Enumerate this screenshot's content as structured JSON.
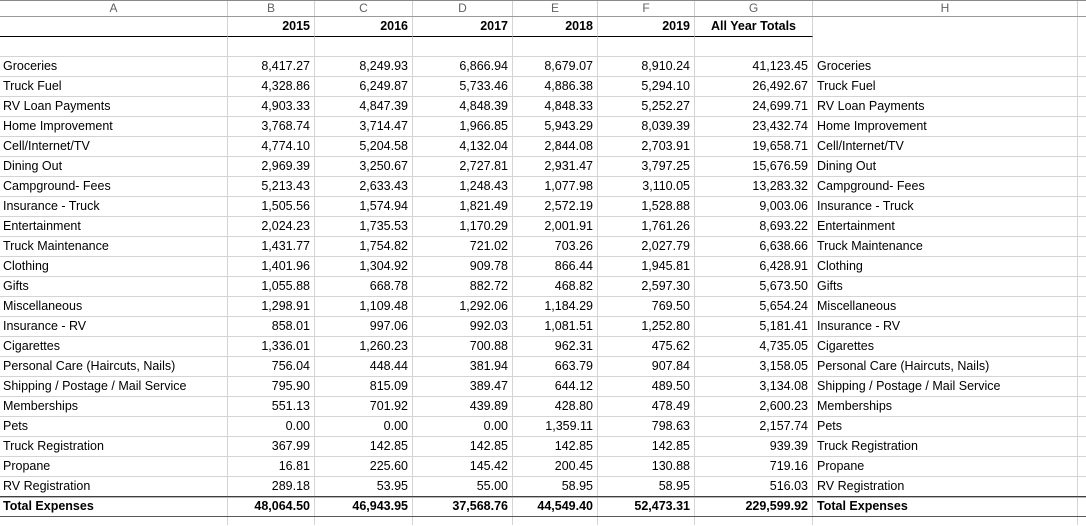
{
  "columns": [
    "A",
    "B",
    "C",
    "D",
    "E",
    "F",
    "G",
    "H"
  ],
  "year_headers": [
    "2015",
    "2016",
    "2017",
    "2018",
    "2019"
  ],
  "all_year_totals_label": "All Year Totals",
  "rows": [
    {
      "label": "Groceries",
      "values": [
        "8,417.27",
        "8,249.93",
        "6,866.94",
        "8,679.07",
        "8,910.24"
      ],
      "total": "41,123.45"
    },
    {
      "label": "Truck Fuel",
      "values": [
        "4,328.86",
        "6,249.87",
        "5,733.46",
        "4,886.38",
        "5,294.10"
      ],
      "total": "26,492.67"
    },
    {
      "label": "RV Loan Payments",
      "values": [
        "4,903.33",
        "4,847.39",
        "4,848.39",
        "4,848.33",
        "5,252.27"
      ],
      "total": "24,699.71"
    },
    {
      "label": "Home Improvement",
      "values": [
        "3,768.74",
        "3,714.47",
        "1,966.85",
        "5,943.29",
        "8,039.39"
      ],
      "total": "23,432.74"
    },
    {
      "label": "Cell/Internet/TV",
      "values": [
        "4,774.10",
        "5,204.58",
        "4,132.04",
        "2,844.08",
        "2,703.91"
      ],
      "total": "19,658.71"
    },
    {
      "label": "Dining Out",
      "values": [
        "2,969.39",
        "3,250.67",
        "2,727.81",
        "2,931.47",
        "3,797.25"
      ],
      "total": "15,676.59"
    },
    {
      "label": "Campground- Fees",
      "values": [
        "5,213.43",
        "2,633.43",
        "1,248.43",
        "1,077.98",
        "3,110.05"
      ],
      "total": "13,283.32"
    },
    {
      "label": "Insurance - Truck",
      "values": [
        "1,505.56",
        "1,574.94",
        "1,821.49",
        "2,572.19",
        "1,528.88"
      ],
      "total": "9,003.06"
    },
    {
      "label": "Entertainment",
      "values": [
        "2,024.23",
        "1,735.53",
        "1,170.29",
        "2,001.91",
        "1,761.26"
      ],
      "total": "8,693.22"
    },
    {
      "label": "Truck Maintenance",
      "values": [
        "1,431.77",
        "1,754.82",
        "721.02",
        "703.26",
        "2,027.79"
      ],
      "total": "6,638.66"
    },
    {
      "label": "Clothing",
      "values": [
        "1,401.96",
        "1,304.92",
        "909.78",
        "866.44",
        "1,945.81"
      ],
      "total": "6,428.91"
    },
    {
      "label": "Gifts",
      "values": [
        "1,055.88",
        "668.78",
        "882.72",
        "468.82",
        "2,597.30"
      ],
      "total": "5,673.50"
    },
    {
      "label": "Miscellaneous",
      "values": [
        "1,298.91",
        "1,109.48",
        "1,292.06",
        "1,184.29",
        "769.50"
      ],
      "total": "5,654.24"
    },
    {
      "label": "Insurance - RV",
      "values": [
        "858.01",
        "997.06",
        "992.03",
        "1,081.51",
        "1,252.80"
      ],
      "total": "5,181.41"
    },
    {
      "label": "Cigarettes",
      "values": [
        "1,336.01",
        "1,260.23",
        "700.88",
        "962.31",
        "475.62"
      ],
      "total": "4,735.05"
    },
    {
      "label": "Personal Care (Haircuts, Nails)",
      "values": [
        "756.04",
        "448.44",
        "381.94",
        "663.79",
        "907.84"
      ],
      "total": "3,158.05"
    },
    {
      "label": "Shipping / Postage / Mail Service",
      "values": [
        "795.90",
        "815.09",
        "389.47",
        "644.12",
        "489.50"
      ],
      "total": "3,134.08"
    },
    {
      "label": "Memberships",
      "values": [
        "551.13",
        "701.92",
        "439.89",
        "428.80",
        "478.49"
      ],
      "total": "2,600.23"
    },
    {
      "label": "Pets",
      "values": [
        "0.00",
        "0.00",
        "0.00",
        "1,359.11",
        "798.63"
      ],
      "total": "2,157.74"
    },
    {
      "label": "Truck Registration",
      "values": [
        "367.99",
        "142.85",
        "142.85",
        "142.85",
        "142.85"
      ],
      "total": "939.39"
    },
    {
      "label": "Propane",
      "values": [
        "16.81",
        "225.60",
        "145.42",
        "200.45",
        "130.88"
      ],
      "total": "719.16"
    },
    {
      "label": "RV Registration",
      "values": [
        "289.18",
        "53.95",
        "55.00",
        "58.95",
        "58.95"
      ],
      "total": "516.03"
    }
  ],
  "total_row": {
    "label": "Total Expenses",
    "values": [
      "48,064.50",
      "46,943.95",
      "37,568.76",
      "44,549.40",
      "52,473.31"
    ],
    "total": "229,599.92"
  }
}
